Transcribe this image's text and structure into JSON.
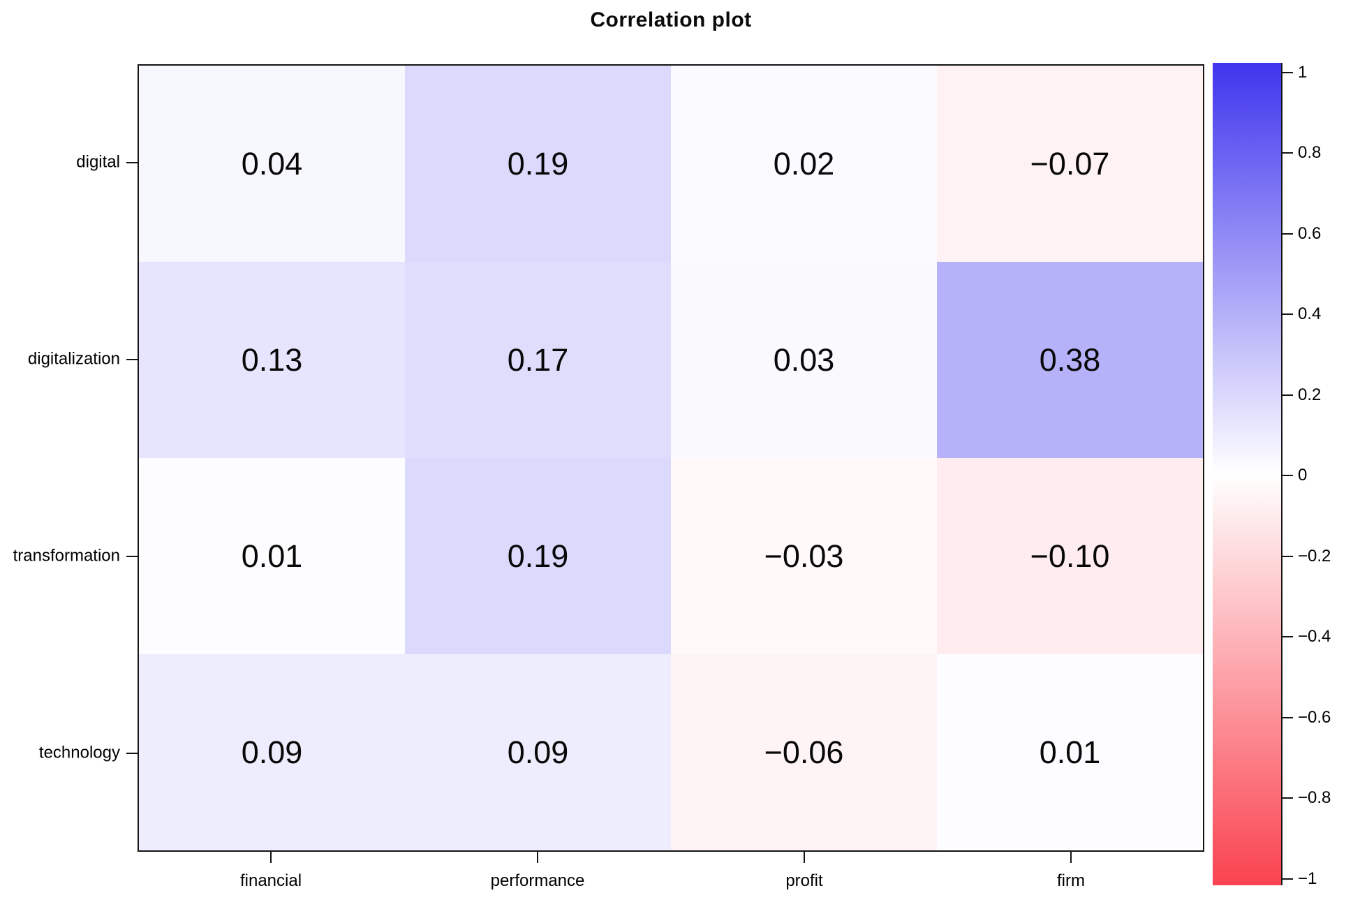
{
  "title": "Correlation plot",
  "chart_data": {
    "type": "heatmap",
    "title": "Correlation plot",
    "rows": [
      "digital",
      "digitalization",
      "transformation",
      "technology"
    ],
    "columns": [
      "financial",
      "performance",
      "profit",
      "firm"
    ],
    "values": [
      [
        0.04,
        0.19,
        0.02,
        -0.07
      ],
      [
        0.13,
        0.17,
        0.03,
        0.38
      ],
      [
        0.01,
        0.19,
        -0.03,
        -0.1
      ],
      [
        0.09,
        0.09,
        -0.06,
        0.01
      ]
    ],
    "value_labels": [
      [
        "0.04",
        "0.19",
        "0.02",
        "−0.07"
      ],
      [
        "0.13",
        "0.17",
        "0.03",
        "0.38"
      ],
      [
        "0.01",
        "0.19",
        "−0.03",
        "−0.10"
      ],
      [
        "0.09",
        "0.09",
        "−0.06",
        "0.01"
      ]
    ],
    "value_range": [
      -1,
      1
    ],
    "grid": false,
    "legend_position": "right",
    "colorbar": {
      "positive_color": "#4035ee",
      "zero_color": "#ffffff",
      "negative_color": "#fa4350",
      "ticks": [
        {
          "label": "1",
          "value": 1
        },
        {
          "label": "0.8",
          "value": 0.8
        },
        {
          "label": "0.6",
          "value": 0.6
        },
        {
          "label": "0.4",
          "value": 0.4
        },
        {
          "label": "0.2",
          "value": 0.2
        },
        {
          "label": "0",
          "value": 0
        },
        {
          "label": "−0.2",
          "value": -0.2
        },
        {
          "label": "−0.4",
          "value": -0.4
        },
        {
          "label": "−0.6",
          "value": -0.6
        },
        {
          "label": "−0.8",
          "value": -0.8
        },
        {
          "label": "−1",
          "value": -1
        }
      ]
    }
  }
}
